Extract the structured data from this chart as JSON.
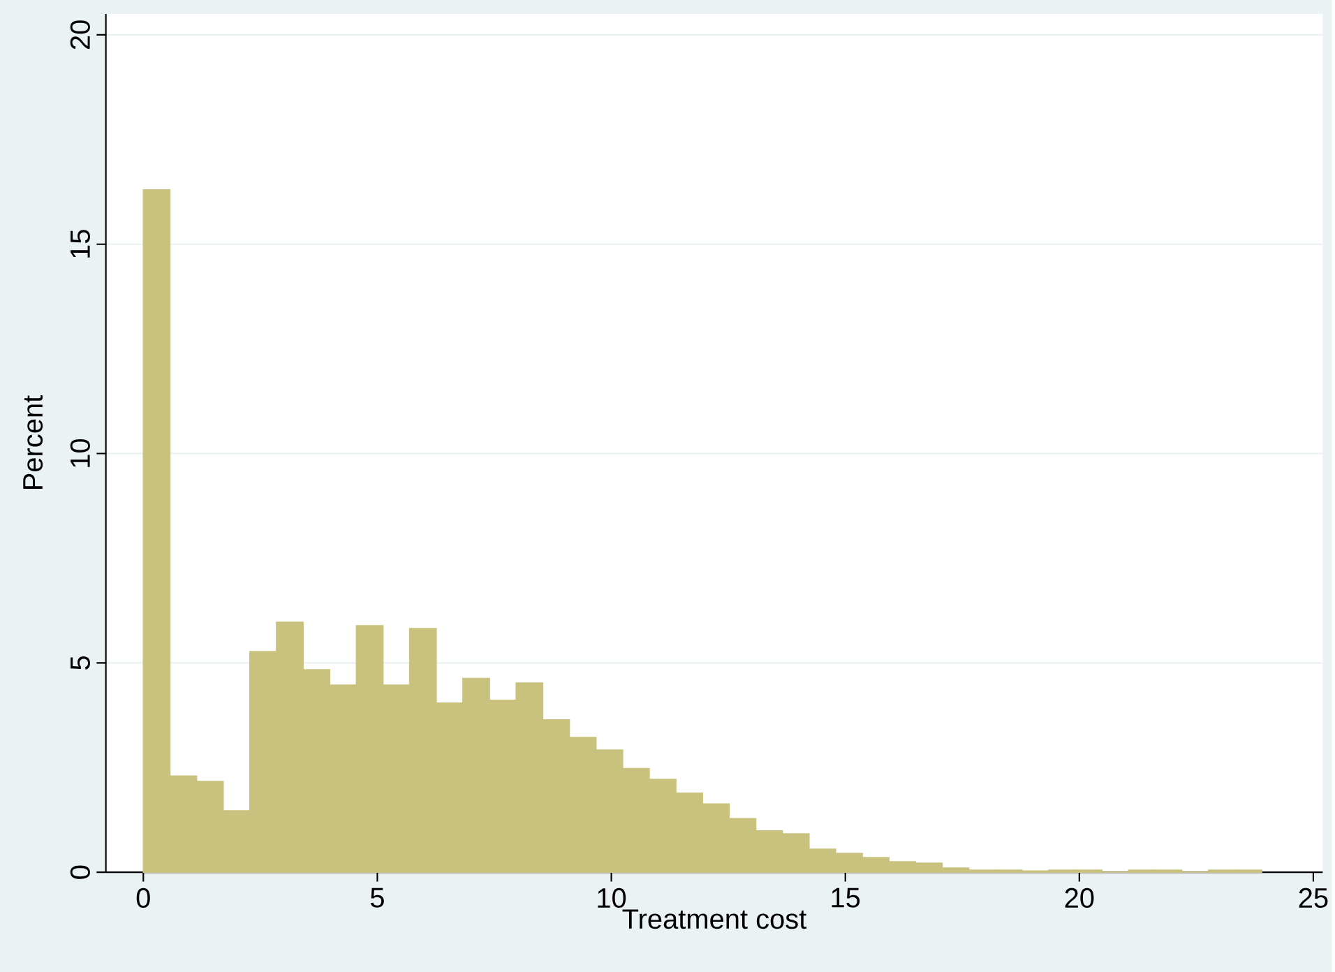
{
  "chart_data": {
    "type": "histogram",
    "xlabel": "Treatment cost",
    "ylabel": "Percent",
    "bins": [
      0,
      0.569,
      1.138,
      1.707,
      2.276,
      2.845,
      3.414,
      3.983,
      4.552,
      5.121,
      5.69,
      6.259,
      6.828,
      7.397,
      7.966,
      8.535,
      9.104,
      9.673,
      10.242,
      10.811,
      11.38,
      11.949,
      12.518,
      13.087,
      13.656,
      14.225,
      14.794,
      15.363,
      15.932,
      16.501,
      17.07,
      17.639,
      18.208,
      18.777,
      19.346,
      19.915,
      20.484,
      21.053,
      21.622,
      22.191,
      22.76,
      23.329,
      23.898
    ],
    "values": [
      16.3,
      2.3,
      2.17,
      1.47,
      5.27,
      5.97,
      4.84,
      4.47,
      5.89,
      4.47,
      5.82,
      4.04,
      4.63,
      4.11,
      4.52,
      3.64,
      3.22,
      2.92,
      2.48,
      2.22,
      1.89,
      1.63,
      1.28,
      0.99,
      0.92,
      0.55,
      0.45,
      0.35,
      0.25,
      0.22,
      0.1,
      0.05,
      0.05,
      0.03,
      0.05,
      0.05,
      0,
      0.05,
      0.05,
      0,
      0.05,
      0.05
    ],
    "color": "#c9c27e",
    "xlim": [
      -0.8,
      25.2
    ],
    "ylim": [
      0,
      20.5
    ],
    "xticks": [
      0,
      5,
      10,
      15,
      20,
      25
    ],
    "yticks": [
      0,
      5,
      10,
      15,
      20
    ],
    "grid": "y"
  }
}
